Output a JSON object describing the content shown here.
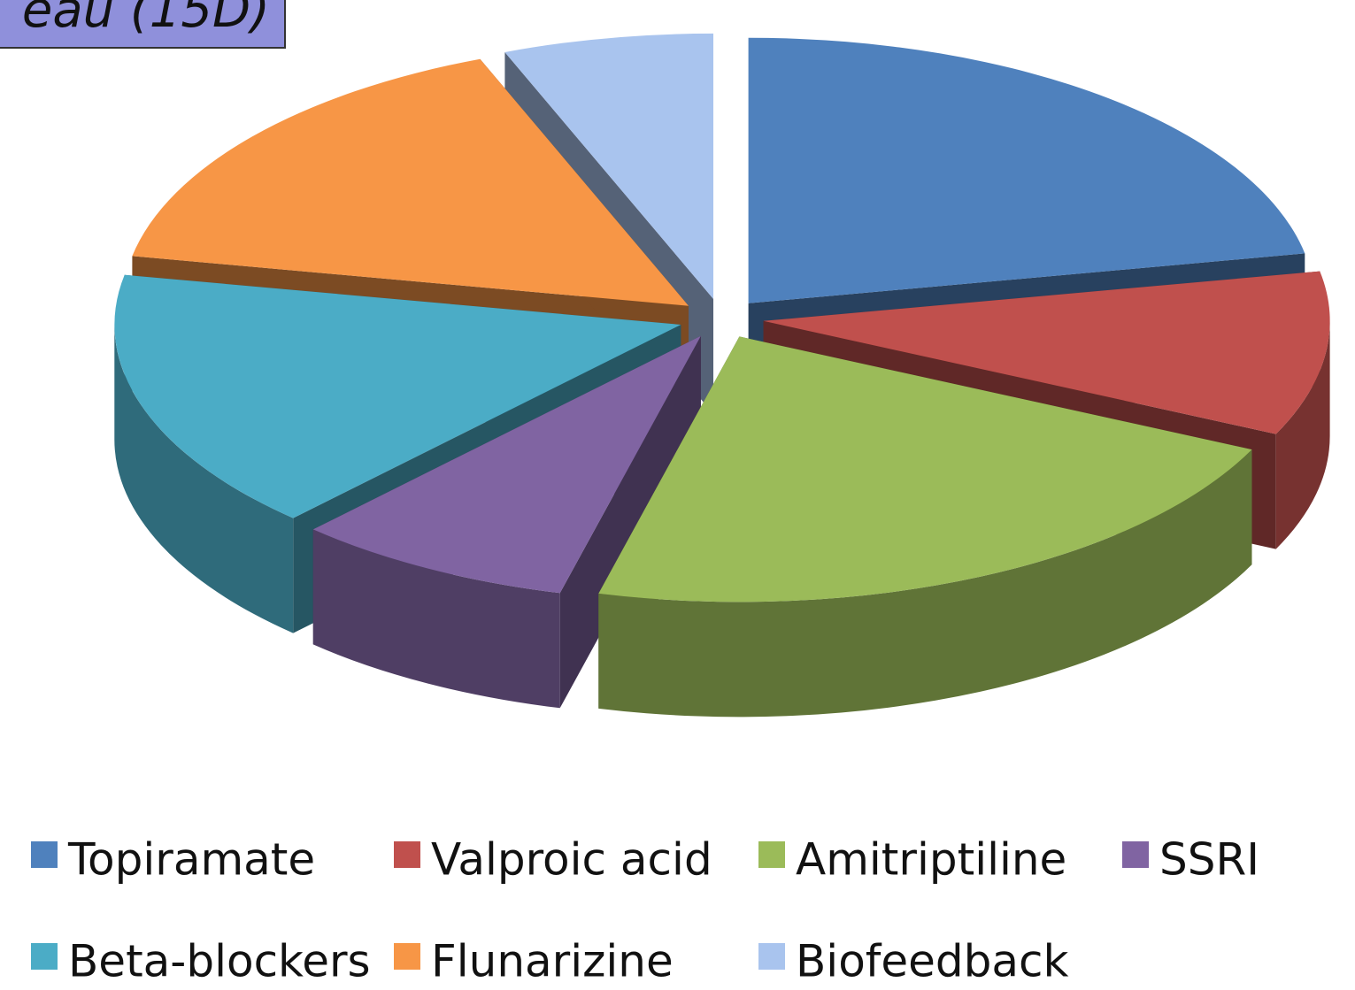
{
  "chart_data": {
    "type": "pie",
    "title": "eau (15D)",
    "categories": [
      "Topiramate",
      "Valproic acid",
      "Amitriptiline",
      "SSRI",
      "Beta-blockers",
      "Flunarizine",
      "Biofeedback"
    ],
    "values": [
      22,
      10,
      22,
      8,
      16,
      16,
      6
    ],
    "colors": [
      "#4f81bd",
      "#c0504d",
      "#9bbb59",
      "#8064a2",
      "#4bacc6",
      "#f79646",
      "#a9c4ee"
    ],
    "legend": "bottom"
  }
}
